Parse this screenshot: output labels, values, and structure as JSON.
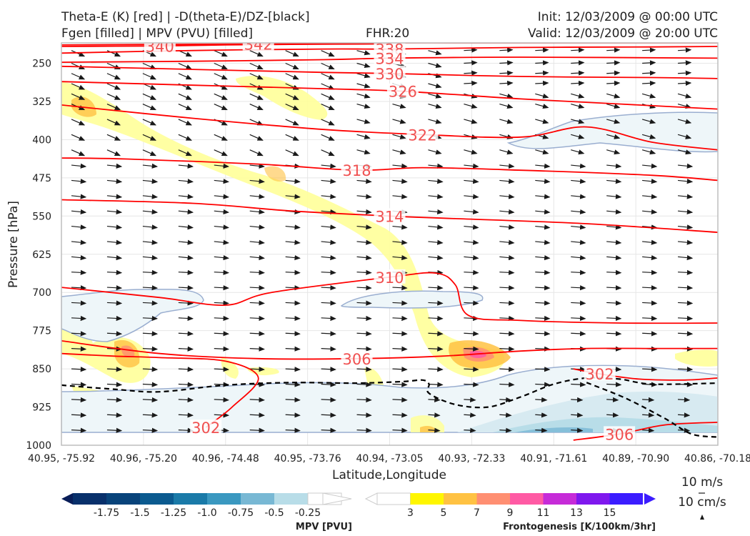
{
  "header": {
    "title_line1": "Theta-E (K) [red] | -D(theta-E)/DZ-[black]",
    "title_line2": "Fgen [filled] | MPV (PVU) [filled]",
    "fhr": "FHR:20",
    "init": "Init: 12/03/2009 @ 00:00 UTC",
    "valid": "Valid: 12/03/2009 @ 20:00 UTC"
  },
  "wind_key": {
    "horizontal": "10 m/s",
    "vertical": "10 cm/s"
  },
  "colors": {
    "theta_e": "#ff0000",
    "theta_e_label": "#f05050",
    "stability": "#000000",
    "mpv_contour": "#9aaed0",
    "wind": "#1a1a1a"
  },
  "chart_data": {
    "type": "cross-section",
    "xlabel": "Latitude,Longitude",
    "ylabel": "Pressure [hPa]",
    "x_ticks": [
      "40.95, -75.92",
      "40.96, -75.20",
      "40.96, -74.48",
      "40.95, -73.76",
      "40.94, -73.05",
      "40.93, -72.33",
      "40.91, -71.61",
      "40.89, -70.90",
      "40.86, -70.18"
    ],
    "y_ticks": [
      250,
      325,
      400,
      475,
      550,
      625,
      700,
      775,
      850,
      925,
      1000
    ],
    "ylim": [
      1000,
      210
    ],
    "grid": true,
    "theta_e_contours": [
      {
        "value": 342,
        "label": "342",
        "points": [
          [
            0.0,
            214
          ],
          [
            0.3,
            212
          ],
          [
            0.5,
            210
          ],
          [
            0.7,
            210
          ],
          [
            1.0,
            210
          ]
        ]
      },
      {
        "value": 340,
        "label": "340",
        "points": [
          [
            0.0,
            217
          ],
          [
            0.15,
            216
          ],
          [
            0.25,
            214
          ],
          [
            0.35,
            213
          ],
          [
            0.5,
            212
          ]
        ]
      },
      {
        "value": 338,
        "label": "338",
        "points": [
          [
            0.0,
            230
          ],
          [
            0.2,
            225
          ],
          [
            0.4,
            222
          ],
          [
            0.5,
            222
          ],
          [
            0.7,
            219
          ],
          [
            0.9,
            218
          ],
          [
            1.0,
            217
          ]
        ]
      },
      {
        "value": 334,
        "label": "334",
        "points": [
          [
            0.0,
            248
          ],
          [
            0.2,
            246
          ],
          [
            0.4,
            243
          ],
          [
            0.5,
            240
          ],
          [
            0.7,
            238
          ],
          [
            1.0,
            240
          ]
        ]
      },
      {
        "value": 330,
        "label": "330",
        "points": [
          [
            0.0,
            256
          ],
          [
            0.2,
            262
          ],
          [
            0.4,
            268
          ],
          [
            0.5,
            270
          ],
          [
            0.7,
            276
          ],
          [
            0.9,
            278
          ],
          [
            1.0,
            280
          ]
        ]
      },
      {
        "value": 326,
        "label": "326",
        "points": [
          [
            0.0,
            286
          ],
          [
            0.2,
            293
          ],
          [
            0.4,
            300
          ],
          [
            0.52,
            305
          ],
          [
            0.7,
            320
          ],
          [
            0.85,
            330
          ],
          [
            1.0,
            340
          ]
        ]
      },
      {
        "value": 322,
        "label": "322",
        "points": [
          [
            0.0,
            332
          ],
          [
            0.2,
            358
          ],
          [
            0.4,
            380
          ],
          [
            0.55,
            390
          ],
          [
            0.7,
            395
          ],
          [
            0.8,
            375
          ],
          [
            0.9,
            405
          ],
          [
            1.0,
            420
          ]
        ]
      },
      {
        "value": 318,
        "label": "318",
        "points": [
          [
            0.0,
            436
          ],
          [
            0.1,
            438
          ],
          [
            0.3,
            448
          ],
          [
            0.45,
            460
          ],
          [
            0.55,
            455
          ],
          [
            0.7,
            460
          ],
          [
            0.9,
            470
          ],
          [
            1.0,
            480
          ]
        ]
      },
      {
        "value": 314,
        "label": "314",
        "points": [
          [
            0.0,
            518
          ],
          [
            0.2,
            525
          ],
          [
            0.35,
            540
          ],
          [
            0.5,
            550
          ],
          [
            0.6,
            555
          ],
          [
            0.8,
            565
          ],
          [
            1.0,
            582
          ]
        ]
      },
      {
        "value": 310,
        "label": "310",
        "points": [
          [
            0.0,
            690
          ],
          [
            0.15,
            710
          ],
          [
            0.25,
            725
          ],
          [
            0.32,
            700
          ],
          [
            0.5,
            670
          ],
          [
            0.57,
            662
          ],
          [
            0.6,
            685
          ],
          [
            0.62,
            745
          ],
          [
            0.7,
            755
          ],
          [
            0.85,
            760
          ],
          [
            1.0,
            760
          ]
        ]
      },
      {
        "value": 306,
        "label": "306",
        "points": [
          [
            0.0,
            795
          ],
          [
            0.15,
            820
          ],
          [
            0.3,
            830
          ],
          [
            0.45,
            830
          ],
          [
            0.58,
            825
          ],
          [
            0.7,
            815
          ],
          [
            0.8,
            810
          ],
          [
            0.9,
            810
          ],
          [
            1.0,
            810
          ]
        ]
      },
      {
        "value": 302,
        "label": "302",
        "points": [
          [
            0.0,
            820
          ],
          [
            0.08,
            825
          ],
          [
            0.15,
            828
          ],
          [
            0.25,
            835
          ],
          [
            0.3,
            868
          ],
          [
            0.26,
            925
          ],
          [
            0.22,
            965
          ]
        ]
      },
      {
        "value": 302,
        "label": "302",
        "points": [
          [
            0.78,
            850
          ],
          [
            0.82,
            860
          ],
          [
            0.88,
            870
          ],
          [
            0.95,
            872
          ],
          [
            1.0,
            868
          ]
        ]
      },
      {
        "value": 306,
        "label": "306",
        "points": [
          [
            0.78,
            990
          ],
          [
            0.85,
            978
          ],
          [
            0.92,
            960
          ],
          [
            1.0,
            955
          ]
        ]
      }
    ],
    "stability_contour": {
      "points": [
        [
          0.0,
          882
        ],
        [
          0.08,
          890
        ],
        [
          0.15,
          895
        ],
        [
          0.25,
          882
        ],
        [
          0.35,
          877
        ],
        [
          0.45,
          878
        ],
        [
          0.52,
          875
        ],
        [
          0.55,
          872
        ],
        [
          0.56,
          880
        ],
        [
          0.56,
          898
        ],
        [
          0.6,
          920
        ],
        [
          0.65,
          925
        ],
        [
          0.7,
          905
        ],
        [
          0.75,
          880
        ],
        [
          0.8,
          868
        ],
        [
          0.85,
          870
        ],
        [
          0.9,
          880
        ],
        [
          1.0,
          878
        ]
      ]
    },
    "stability_contour_2": {
      "points": [
        [
          0.8,
          877
        ],
        [
          0.86,
          908
        ],
        [
          0.92,
          948
        ],
        [
          0.96,
          978
        ],
        [
          1.0,
          984
        ]
      ]
    },
    "fgen_levels": [
      3,
      5,
      7,
      9,
      11,
      13,
      15
    ],
    "mpv_levels": [
      -1.75,
      -1.5,
      -1.25,
      -1.0,
      -0.75,
      -0.5,
      -0.25
    ],
    "fgen_max_value": 9,
    "mpv_min_value": -1.0,
    "colorbars": {
      "mpv_label": "MPV [PVU]",
      "fgen_label": "Frontogenesis [K/100km/3hr]",
      "mpv_ticks": [
        "-1.75",
        "-1.5",
        "-1.25",
        "-1.0",
        "-0.75",
        "-0.5",
        "-0.25"
      ],
      "fgen_ticks": [
        "3",
        "5",
        "7",
        "9",
        "11",
        "13",
        "15"
      ],
      "mpv_colors": [
        "#08306b",
        "#08437a",
        "#0b5a8f",
        "#1a7aa8",
        "#3a98c0",
        "#78b8d4",
        "#b8dde8",
        "#ffffff"
      ],
      "fgen_colors": [
        "#ffffff",
        "#fff600",
        "#ffc243",
        "#ff8f72",
        "#ff5aa4",
        "#c62bd8",
        "#7f18ee",
        "#3b1cff"
      ]
    }
  }
}
